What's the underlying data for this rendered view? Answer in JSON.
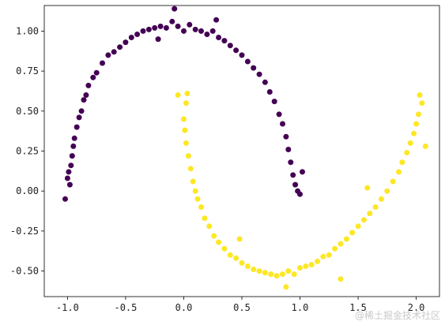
{
  "chart_data": {
    "type": "scatter",
    "title": "",
    "xlabel": "",
    "ylabel": "",
    "xlim": [
      -1.2,
      2.2
    ],
    "ylim": [
      -0.66,
      1.16
    ],
    "x_ticks": [
      -1.0,
      -0.5,
      0.0,
      0.5,
      1.0,
      1.5,
      2.0
    ],
    "x_tick_labels": [
      "-1.0",
      "-0.5",
      "0.0",
      "0.5",
      "1.0",
      "1.5",
      "2.0"
    ],
    "y_ticks": [
      -0.5,
      -0.25,
      0.0,
      0.25,
      0.5,
      0.75,
      1.0
    ],
    "y_tick_labels": [
      "-0.50",
      "-0.25",
      "0.00",
      "0.25",
      "0.50",
      "0.75",
      "1.00"
    ],
    "grid": false,
    "legend": "none",
    "series": [
      {
        "color": "#440154",
        "points": [
          [
            -1.0,
            0.08
          ],
          [
            -0.99,
            0.12
          ],
          [
            -0.98,
            0.04
          ],
          [
            -0.97,
            0.16
          ],
          [
            -0.96,
            0.22
          ],
          [
            -0.95,
            0.28
          ],
          [
            -0.94,
            0.33
          ],
          [
            -0.92,
            0.4
          ],
          [
            -0.9,
            0.46
          ],
          [
            -0.88,
            0.5
          ],
          [
            -0.86,
            0.57
          ],
          [
            -0.84,
            0.6
          ],
          [
            -0.82,
            0.66
          ],
          [
            -0.78,
            0.71
          ],
          [
            -0.75,
            0.74
          ],
          [
            -0.7,
            0.8
          ],
          [
            -0.65,
            0.85
          ],
          [
            -0.6,
            0.87
          ],
          [
            -0.55,
            0.9
          ],
          [
            -0.5,
            0.93
          ],
          [
            -0.45,
            0.96
          ],
          [
            -0.4,
            0.98
          ],
          [
            -0.35,
            1.0
          ],
          [
            -0.3,
            1.01
          ],
          [
            -0.25,
            1.02
          ],
          [
            -0.2,
            1.03
          ],
          [
            -0.15,
            1.02
          ],
          [
            -0.1,
            1.06
          ],
          [
            -0.05,
            1.03
          ],
          [
            0.0,
            1.0
          ],
          [
            0.05,
            1.04
          ],
          [
            0.1,
            1.01
          ],
          [
            0.15,
            1.0
          ],
          [
            0.2,
            0.98
          ],
          [
            0.25,
            1.0
          ],
          [
            0.3,
            0.96
          ],
          [
            0.35,
            0.94
          ],
          [
            0.4,
            0.91
          ],
          [
            0.45,
            0.88
          ],
          [
            0.5,
            0.85
          ],
          [
            0.55,
            0.81
          ],
          [
            0.6,
            0.77
          ],
          [
            0.65,
            0.73
          ],
          [
            0.7,
            0.68
          ],
          [
            0.74,
            0.62
          ],
          [
            0.78,
            0.56
          ],
          [
            0.82,
            0.48
          ],
          [
            0.85,
            0.42
          ],
          [
            0.88,
            0.34
          ],
          [
            0.9,
            0.26
          ],
          [
            0.92,
            0.18
          ],
          [
            0.94,
            0.1
          ],
          [
            0.96,
            0.04
          ],
          [
            0.98,
            0.0
          ],
          [
            1.0,
            -0.02
          ],
          [
            1.02,
            0.12
          ],
          [
            -0.08,
            1.14
          ],
          [
            -1.02,
            -0.05
          ],
          [
            0.28,
            1.07
          ],
          [
            -0.22,
            0.95
          ]
        ]
      },
      {
        "color": "#fde725",
        "points": [
          [
            -0.05,
            0.6
          ],
          [
            0.03,
            0.61
          ],
          [
            0.02,
            0.55
          ],
          [
            0.0,
            0.45
          ],
          [
            0.01,
            0.38
          ],
          [
            0.02,
            0.3
          ],
          [
            0.04,
            0.22
          ],
          [
            0.06,
            0.14
          ],
          [
            0.08,
            0.06
          ],
          [
            0.1,
            0.0
          ],
          [
            0.12,
            -0.05
          ],
          [
            0.15,
            -0.1
          ],
          [
            0.18,
            -0.17
          ],
          [
            0.22,
            -0.22
          ],
          [
            0.26,
            -0.28
          ],
          [
            0.3,
            -0.32
          ],
          [
            0.35,
            -0.36
          ],
          [
            0.4,
            -0.4
          ],
          [
            0.45,
            -0.42
          ],
          [
            0.5,
            -0.45
          ],
          [
            0.55,
            -0.47
          ],
          [
            0.6,
            -0.49
          ],
          [
            0.65,
            -0.5
          ],
          [
            0.7,
            -0.51
          ],
          [
            0.75,
            -0.52
          ],
          [
            0.8,
            -0.53
          ],
          [
            0.85,
            -0.52
          ],
          [
            0.9,
            -0.5
          ],
          [
            0.95,
            -0.52
          ],
          [
            1.0,
            -0.48
          ],
          [
            1.05,
            -0.47
          ],
          [
            1.1,
            -0.46
          ],
          [
            1.15,
            -0.44
          ],
          [
            1.2,
            -0.41
          ],
          [
            1.25,
            -0.4
          ],
          [
            1.3,
            -0.36
          ],
          [
            1.35,
            -0.33
          ],
          [
            1.4,
            -0.3
          ],
          [
            1.45,
            -0.26
          ],
          [
            1.5,
            -0.22
          ],
          [
            1.55,
            -0.18
          ],
          [
            1.6,
            -0.14
          ],
          [
            1.65,
            -0.1
          ],
          [
            1.7,
            -0.05
          ],
          [
            1.75,
            0.0
          ],
          [
            1.8,
            0.06
          ],
          [
            1.85,
            0.12
          ],
          [
            1.88,
            0.18
          ],
          [
            1.92,
            0.24
          ],
          [
            1.95,
            0.3
          ],
          [
            1.98,
            0.36
          ],
          [
            2.0,
            0.42
          ],
          [
            2.02,
            0.48
          ],
          [
            2.05,
            0.55
          ],
          [
            2.03,
            0.6
          ],
          [
            2.08,
            0.28
          ],
          [
            0.88,
            -0.6
          ],
          [
            1.35,
            -0.55
          ],
          [
            0.48,
            -0.3
          ],
          [
            1.58,
            0.02
          ]
        ]
      }
    ]
  },
  "watermark": "@稀土掘金技术社区"
}
